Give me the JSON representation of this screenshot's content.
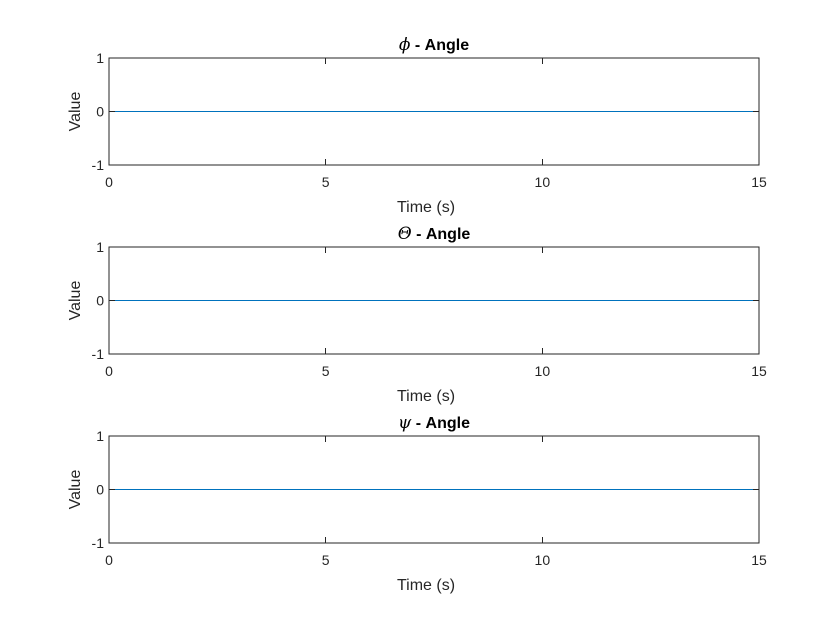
{
  "chart_data": [
    {
      "type": "line",
      "title_symbol": "ϕ",
      "title_text": " - Angle",
      "xlabel": "Time (s)",
      "ylabel": "Value",
      "xlim": [
        0,
        15
      ],
      "ylim": [
        -1,
        1
      ],
      "xticks": [
        0,
        5,
        10,
        15
      ],
      "yticks": [
        -1,
        0,
        1
      ],
      "grid": false,
      "series": [
        {
          "x": [
            0,
            15
          ],
          "y": [
            0,
            0
          ],
          "color": "#0072BD"
        }
      ]
    },
    {
      "type": "line",
      "title_symbol": "Θ",
      "title_text": " - Angle",
      "xlabel": "Time (s)",
      "ylabel": "Value",
      "xlim": [
        0,
        15
      ],
      "ylim": [
        -1,
        1
      ],
      "xticks": [
        0,
        5,
        10,
        15
      ],
      "yticks": [
        -1,
        0,
        1
      ],
      "grid": false,
      "series": [
        {
          "x": [
            0,
            15
          ],
          "y": [
            0,
            0
          ],
          "color": "#0072BD"
        }
      ]
    },
    {
      "type": "line",
      "title_symbol": "ψ",
      "title_text": " - Angle",
      "xlabel": "Time (s)",
      "ylabel": "Value",
      "xlim": [
        0,
        15
      ],
      "ylim": [
        -1,
        1
      ],
      "xticks": [
        0,
        5,
        10,
        15
      ],
      "yticks": [
        -1,
        0,
        1
      ],
      "grid": false,
      "series": [
        {
          "x": [
            0,
            15
          ],
          "y": [
            0,
            0
          ],
          "color": "#0072BD"
        }
      ]
    }
  ]
}
